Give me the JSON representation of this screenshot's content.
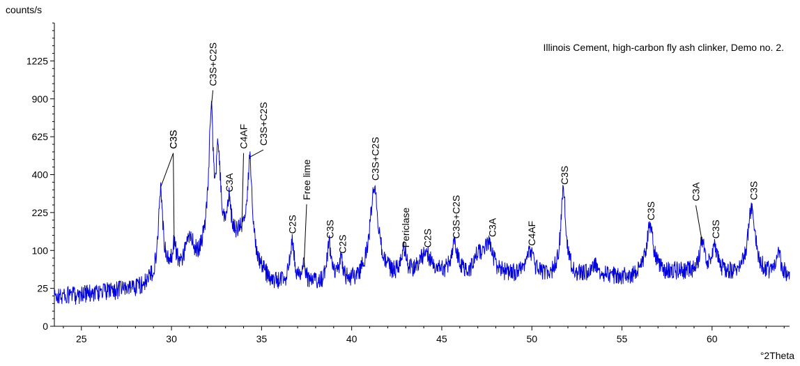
{
  "chart_data": {
    "type": "line",
    "title": "Illinois Cement, high-carbon fly ash clinker, Demo no. 2.",
    "ylabel": "counts/s",
    "xlabel": "°2Theta",
    "y_scale": "sqrt",
    "xlim": [
      23.5,
      64.3
    ],
    "ylim": [
      0,
      1600
    ],
    "x_ticks": [
      25,
      30,
      35,
      40,
      45,
      50,
      55,
      60
    ],
    "y_ticks": [
      0,
      25,
      100,
      225,
      400,
      625,
      900,
      1225
    ],
    "series_color": "#0000dd",
    "baseline": [
      [
        23.5,
        15
      ],
      [
        25,
        18
      ],
      [
        27,
        22
      ],
      [
        28.5,
        26
      ],
      [
        29.3,
        36
      ],
      [
        30.5,
        50
      ],
      [
        31.5,
        65
      ],
      [
        32.0,
        100
      ],
      [
        33.0,
        120
      ],
      [
        34.0,
        130
      ],
      [
        34.8,
        60
      ],
      [
        35.5,
        30
      ],
      [
        38,
        30
      ],
      [
        40,
        30
      ],
      [
        42,
        38
      ],
      [
        44,
        42
      ],
      [
        46,
        42
      ],
      [
        48,
        45
      ],
      [
        50,
        40
      ],
      [
        52,
        40
      ],
      [
        54,
        44
      ],
      [
        56,
        40
      ],
      [
        58,
        50
      ],
      [
        60,
        50
      ],
      [
        62,
        45
      ],
      [
        64.3,
        45
      ]
    ],
    "peaks": [
      {
        "x": 29.4,
        "y": 330,
        "w": 0.12
      },
      {
        "x": 30.15,
        "y": 110,
        "w": 0.12
      },
      {
        "x": 31.0,
        "y": 130,
        "w": 0.25
      },
      {
        "x": 32.2,
        "y": 810,
        "w": 0.12
      },
      {
        "x": 32.6,
        "y": 520,
        "w": 0.12
      },
      {
        "x": 33.2,
        "y": 265,
        "w": 0.12
      },
      {
        "x": 33.9,
        "y": 150,
        "w": 0.15
      },
      {
        "x": 34.35,
        "y": 490,
        "w": 0.12
      },
      {
        "x": 36.7,
        "y": 130,
        "w": 0.12
      },
      {
        "x": 37.35,
        "y": 58,
        "w": 0.12
      },
      {
        "x": 38.75,
        "y": 115,
        "w": 0.12
      },
      {
        "x": 39.4,
        "y": 75,
        "w": 0.12
      },
      {
        "x": 41.25,
        "y": 340,
        "w": 0.22
      },
      {
        "x": 42.9,
        "y": 90,
        "w": 0.15
      },
      {
        "x": 44.1,
        "y": 90,
        "w": 0.4
      },
      {
        "x": 45.7,
        "y": 115,
        "w": 0.2
      },
      {
        "x": 47.0,
        "y": 85,
        "w": 0.2
      },
      {
        "x": 47.6,
        "y": 120,
        "w": 0.25
      },
      {
        "x": 49.9,
        "y": 95,
        "w": 0.25
      },
      {
        "x": 51.75,
        "y": 320,
        "w": 0.14
      },
      {
        "x": 53.5,
        "y": 65,
        "w": 0.25
      },
      {
        "x": 56.55,
        "y": 170,
        "w": 0.22
      },
      {
        "x": 59.45,
        "y": 120,
        "w": 0.16
      },
      {
        "x": 60.15,
        "y": 110,
        "w": 0.16
      },
      {
        "x": 62.2,
        "y": 250,
        "w": 0.2
      },
      {
        "x": 63.7,
        "y": 100,
        "w": 0.12
      }
    ],
    "annotations": [
      {
        "text": "C3S",
        "x": 29.4,
        "y": 330,
        "label_x": 30.1,
        "label_y": 530
      },
      {
        "text": "C3S",
        "x": 30.15,
        "y": 110,
        "label_x": 30.1,
        "label_y": 530
      },
      {
        "text": "C3S+C2S",
        "x": 32.2,
        "y": 810,
        "label_x": 32.3,
        "label_y": 980
      },
      {
        "text": "C3A",
        "x": 33.2,
        "y": 265,
        "label_x": 33.2,
        "label_y": 300
      },
      {
        "text": "C4AF",
        "x": 33.9,
        "y": 150,
        "label_x": 34.0,
        "label_y": 530
      },
      {
        "text": "C3S+C2S",
        "x": 34.35,
        "y": 490,
        "label_x": 35.1,
        "label_y": 550
      },
      {
        "text": "C2S",
        "x": 36.7,
        "y": 130,
        "label_x": 36.7,
        "label_y": 140
      },
      {
        "text": "Free lime",
        "x": 37.35,
        "y": 58,
        "label_x": 37.5,
        "label_y": 265
      },
      {
        "text": "C3S",
        "x": 38.75,
        "y": 115,
        "label_x": 38.8,
        "label_y": 125
      },
      {
        "text": "C2S",
        "x": 39.4,
        "y": 75,
        "label_x": 39.5,
        "label_y": 85
      },
      {
        "text": "C3S+C2S",
        "x": 41.25,
        "y": 340,
        "label_x": 41.3,
        "label_y": 355
      },
      {
        "text": "Periclase",
        "x": 42.9,
        "y": 90,
        "label_x": 43.0,
        "label_y": 100
      },
      {
        "text": "C2S",
        "x": 44.1,
        "y": 90,
        "label_x": 44.2,
        "label_y": 100
      },
      {
        "text": "C3S+C2S",
        "x": 45.7,
        "y": 115,
        "label_x": 45.8,
        "label_y": 125
      },
      {
        "text": "C3A",
        "x": 47.6,
        "y": 120,
        "label_x": 47.8,
        "label_y": 130
      },
      {
        "text": "C4AF",
        "x": 49.9,
        "y": 95,
        "label_x": 50.0,
        "label_y": 105
      },
      {
        "text": "C3S",
        "x": 51.75,
        "y": 320,
        "label_x": 51.8,
        "label_y": 335
      },
      {
        "text": "C3S",
        "x": 56.55,
        "y": 170,
        "label_x": 56.6,
        "label_y": 185
      },
      {
        "text": "C3A",
        "x": 59.45,
        "y": 120,
        "label_x": 59.1,
        "label_y": 260
      },
      {
        "text": "C3S",
        "x": 60.15,
        "y": 110,
        "label_x": 60.2,
        "label_y": 125
      },
      {
        "text": "C3S",
        "x": 62.2,
        "y": 250,
        "label_x": 62.3,
        "label_y": 265
      }
    ]
  }
}
